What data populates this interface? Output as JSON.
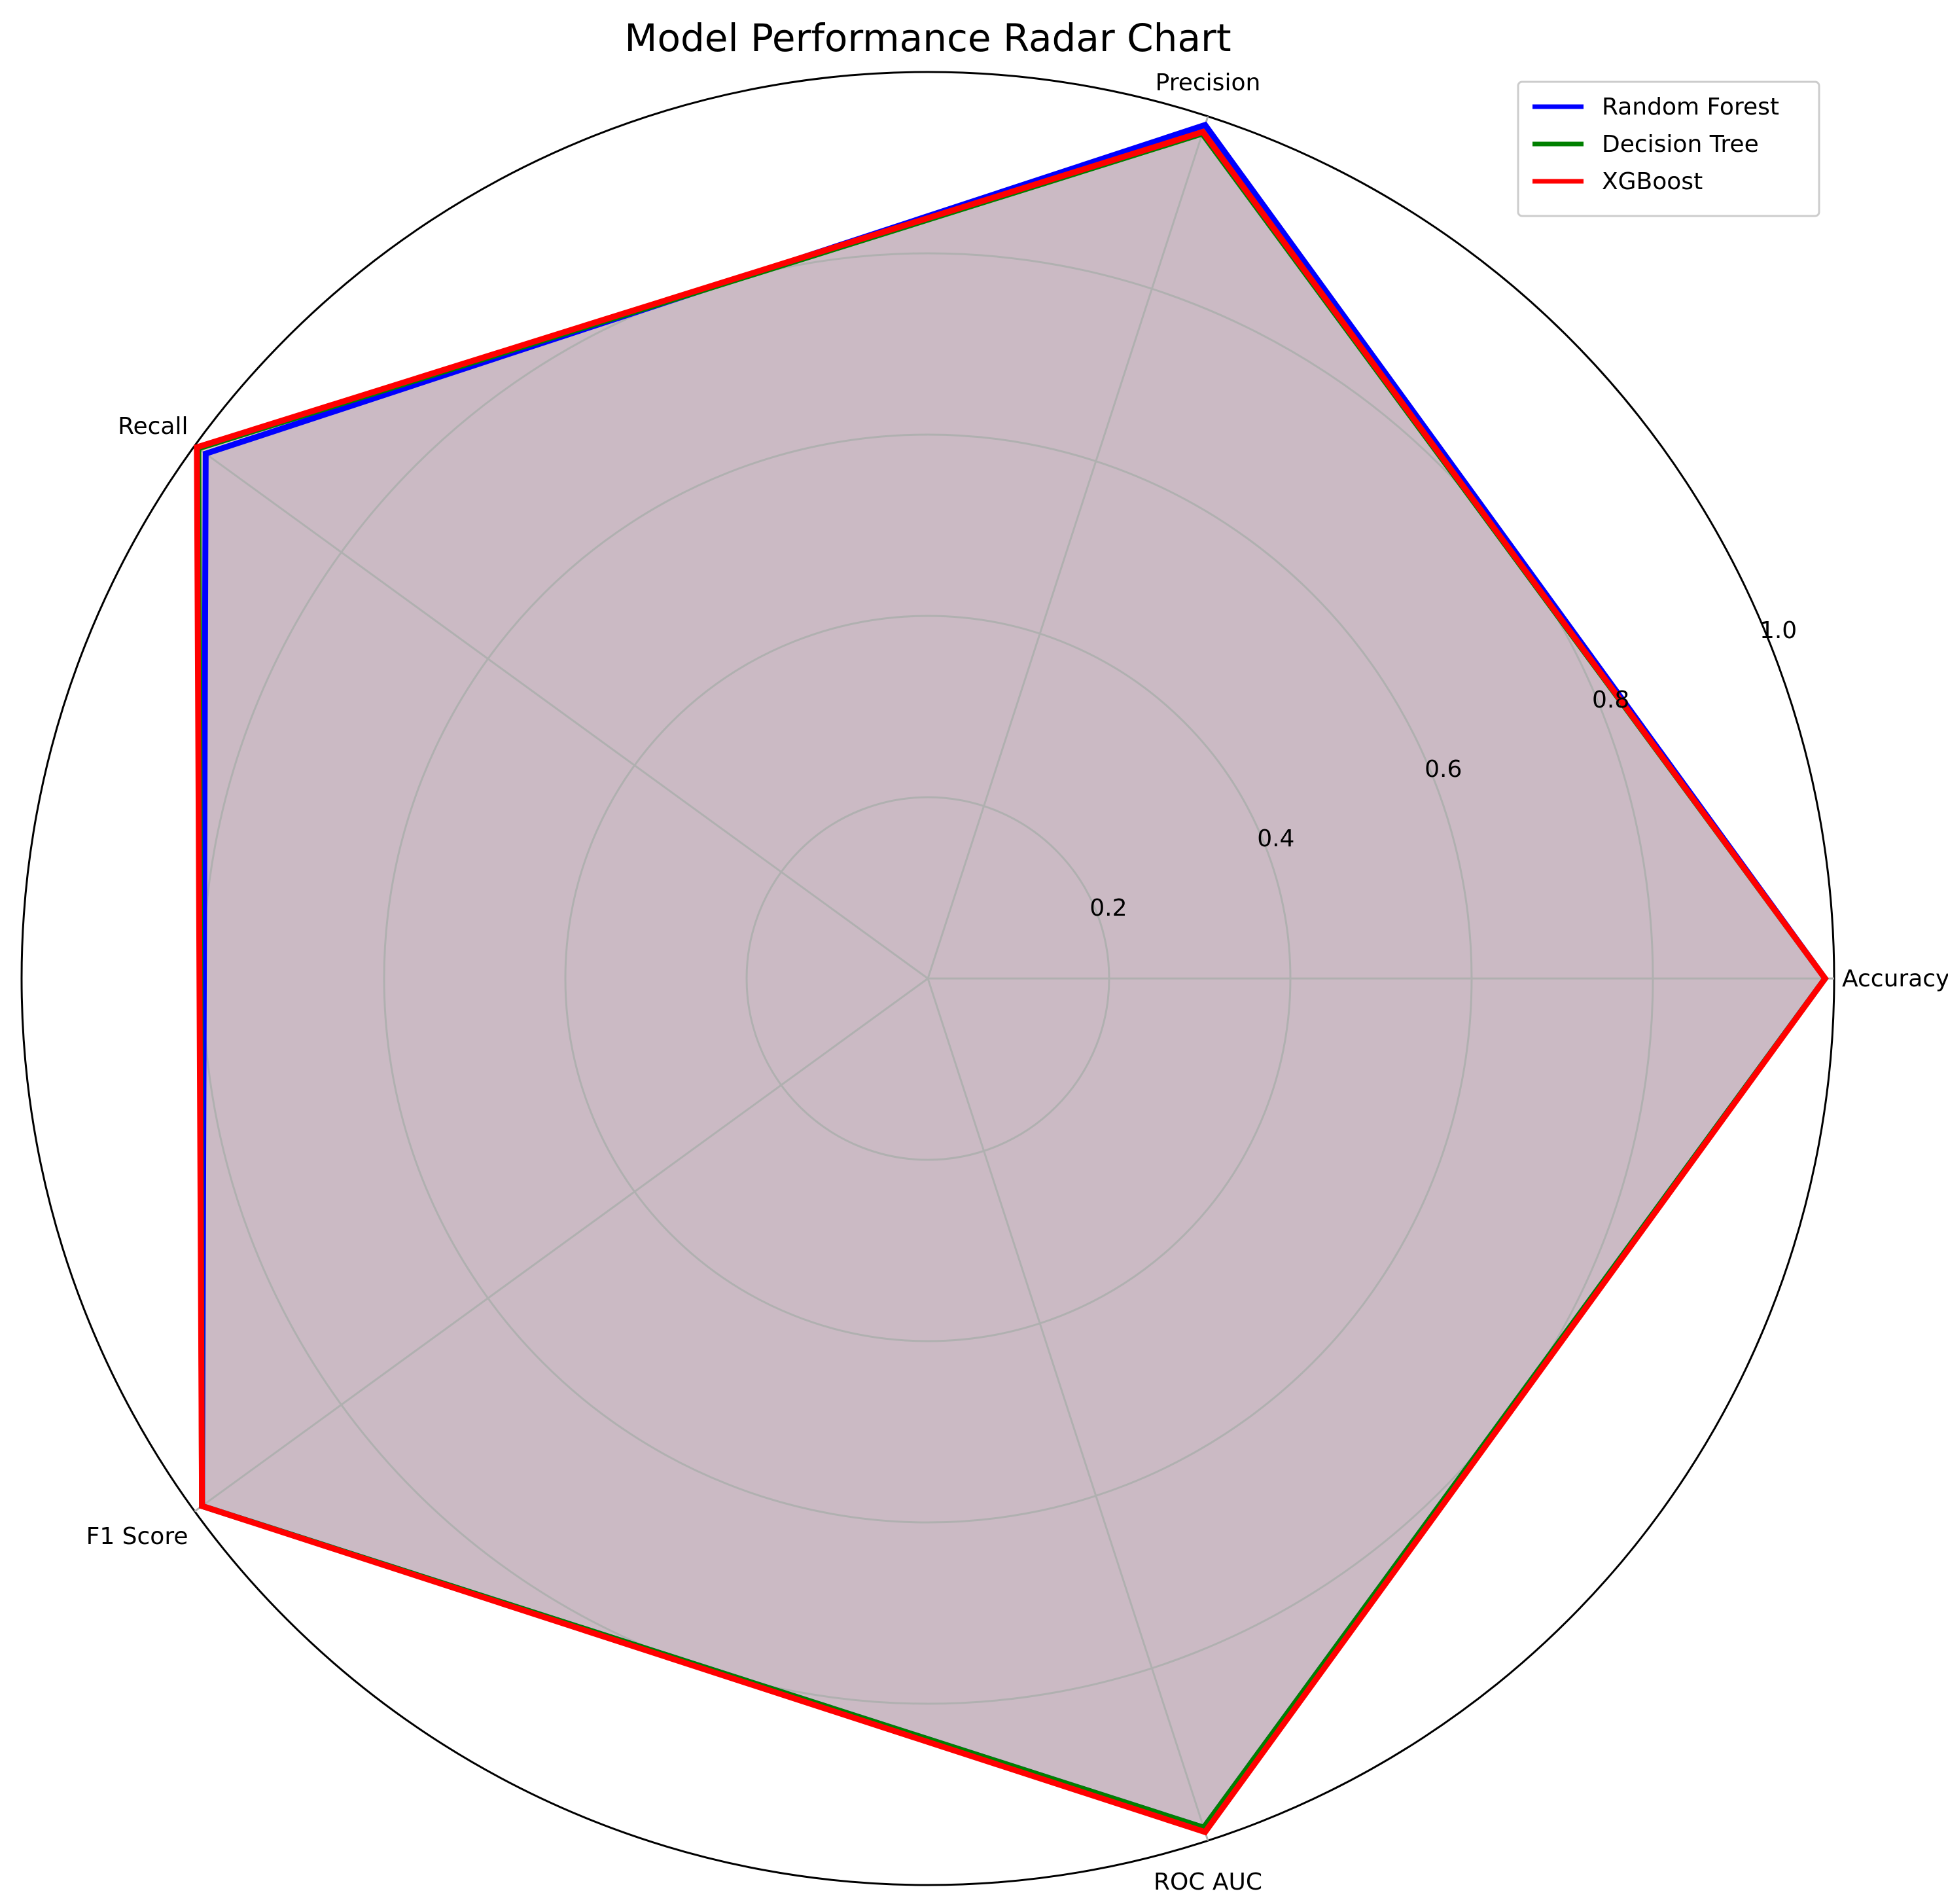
{
  "chart_data": {
    "type": "radar",
    "title": "Model Performance Radar Chart",
    "categories": [
      "Accuracy",
      "Precision",
      "Recall",
      "F1 Score",
      "ROC AUC"
    ],
    "rlim": [
      0,
      1.0
    ],
    "rticks": [
      0.2,
      0.4,
      0.6,
      0.8,
      1.0
    ],
    "rtick_labels": [
      "0.2",
      "0.4",
      "0.6",
      "0.8",
      "1.0"
    ],
    "grid": true,
    "legend_position": "top-right",
    "series": [
      {
        "name": "Random Forest",
        "color": "#0000ff",
        "values": [
          0.99,
          0.99,
          0.985,
          0.99,
          0.985
        ]
      },
      {
        "name": "Decision Tree",
        "color": "#008000",
        "values": [
          0.99,
          0.98,
          0.995,
          0.99,
          0.985
        ]
      },
      {
        "name": "XGBoost",
        "color": "#ff0000",
        "values": [
          0.99,
          0.982,
          0.997,
          0.99,
          0.99
        ]
      }
    ],
    "fill_color": "#c8b4c2"
  }
}
